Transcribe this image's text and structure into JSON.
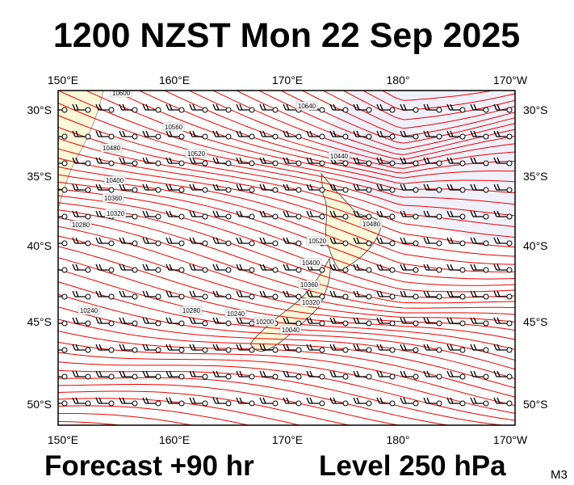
{
  "header": {
    "title": "1200 NZST Mon 22 Sep 2025"
  },
  "axes": {
    "lon_labels": [
      "150°E",
      "160°E",
      "170°E",
      "180°",
      "170°W"
    ],
    "lat_labels": [
      "30°S",
      "35°S",
      "40°S",
      "45°S",
      "50°S"
    ]
  },
  "contour_labels": [
    "10600",
    "10640",
    "10560",
    "10480",
    "10520",
    "10400",
    "10360",
    "10320",
    "10280",
    "10240",
    "10440",
    "10480",
    "10520",
    "10400",
    "10360",
    "10320",
    "10280",
    "10240",
    "10200",
    "10040"
  ],
  "footer": {
    "forecast": "Forecast +90 hr",
    "level": "Level 250 hPa",
    "code": "M3"
  }
}
